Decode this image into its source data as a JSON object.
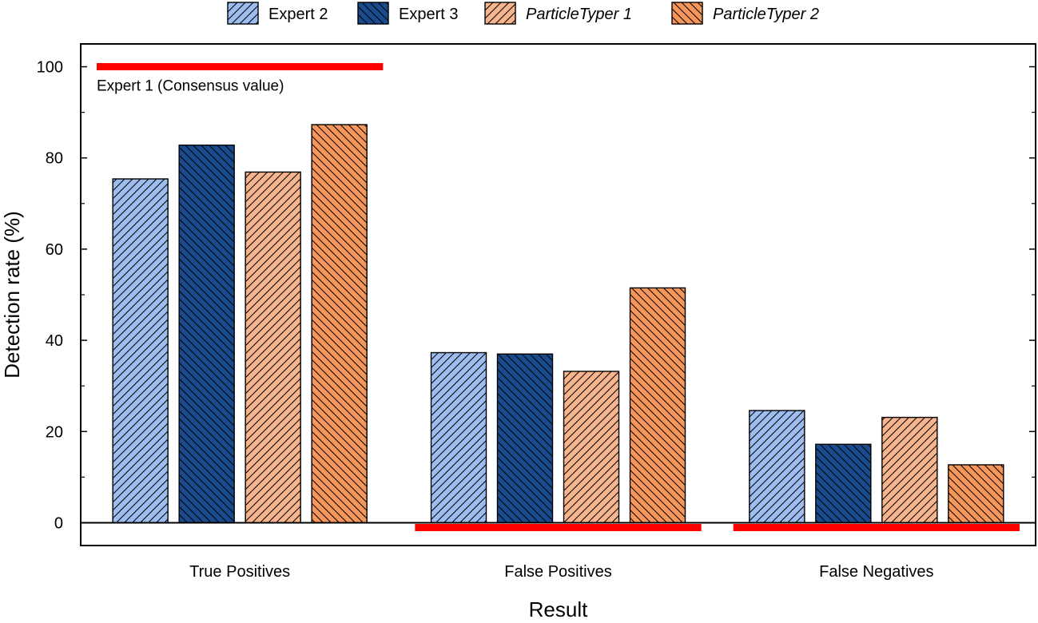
{
  "chart_data": {
    "type": "bar",
    "title": "",
    "xlabel": "Result",
    "ylabel": "Detection rate (%)",
    "ylim": [
      -5,
      105
    ],
    "yticks": [
      0,
      20,
      40,
      60,
      80,
      100
    ],
    "grid": false,
    "legend_position": "top",
    "categories": [
      "True Positives",
      "False Positives",
      "False Negatives"
    ],
    "series": [
      {
        "name": "Expert 2",
        "values": [
          75.4,
          37.3,
          24.6
        ],
        "color": "#9dbcef",
        "hatch": "forward",
        "italic": false
      },
      {
        "name": "Expert 3",
        "values": [
          82.8,
          37.0,
          17.2
        ],
        "color": "#1a4b8f",
        "hatch": "backward",
        "italic": false
      },
      {
        "name": "ParticleTyper 1",
        "values": [
          76.9,
          33.2,
          23.1
        ],
        "color": "#f8b48c",
        "hatch": "forward",
        "italic": true
      },
      {
        "name": "ParticleTyper 2",
        "values": [
          87.3,
          51.5,
          12.7
        ],
        "color": "#f5965a",
        "hatch": "backward",
        "italic": true
      }
    ],
    "reference": {
      "label": "Expert 1 (Consensus value)",
      "values": [
        100,
        0,
        0
      ],
      "color": "#ff0000"
    }
  }
}
